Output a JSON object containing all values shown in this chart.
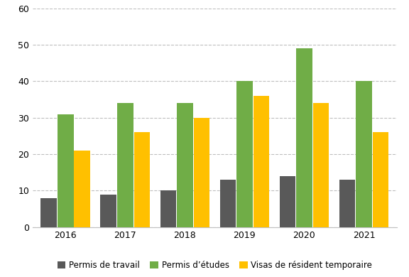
{
  "years": [
    "2016",
    "2017",
    "2018",
    "2019",
    "2020",
    "2021"
  ],
  "series": {
    "Permis de travail": [
      8,
      9,
      10,
      13,
      14,
      13
    ],
    "Permis d’études": [
      31,
      34,
      34,
      40,
      49,
      40
    ],
    "Visas de résident temporaire": [
      21,
      26,
      30,
      36,
      34,
      26
    ]
  },
  "colors": {
    "Permis de travail": "#595959",
    "Permis d’études": "#70AD47",
    "Visas de résident temporaire": "#FFC000"
  },
  "ylim": [
    0,
    60
  ],
  "yticks": [
    0,
    10,
    20,
    30,
    40,
    50,
    60
  ],
  "background_color": "#ffffff",
  "grid_color": "#bfbfbf",
  "legend_labels": [
    "Permis de travail",
    "Permis d’études",
    "Visas de résident temporaire"
  ]
}
